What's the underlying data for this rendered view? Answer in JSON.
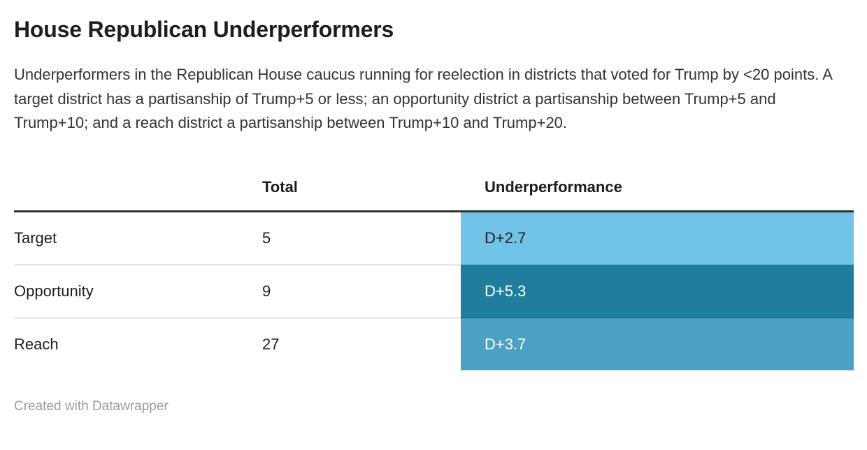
{
  "header": {
    "title": "House Republican Underperformers",
    "description": "Underperformers in the Republican House caucus running for reelection in districts that voted for Trump by <20 points. A target district has a partisanship of Trump+5 or less; an opportunity district a partisanship between Trump+5 and Trump+10; and a reach district a partisanship between Trump+10 and Trump+20."
  },
  "table": {
    "columns": {
      "category": "",
      "total": "Total",
      "underperformance": "Underperformance"
    },
    "rows": [
      {
        "label": "Target",
        "total": "5",
        "underperformance": "D+2.7",
        "cell_bg": "#71c4e8",
        "cell_text": "#1d1d1d"
      },
      {
        "label": "Opportunity",
        "total": "9",
        "underperformance": "D+5.3",
        "cell_bg": "#1f7e9d",
        "cell_text": "#ffffff"
      },
      {
        "label": "Reach",
        "total": "27",
        "underperformance": "D+3.7",
        "cell_bg": "#4aa1c3",
        "cell_text": "#ffffff"
      }
    ]
  },
  "footer": {
    "attribution": "Created with Datawrapper"
  },
  "colors": {
    "title_text": "#1d1d1d",
    "body_text": "#333333",
    "header_rule": "#333333",
    "row_divider": "rgba(0,0,0,0.1)",
    "footer_text": "#9b9b9b",
    "heatmap_light": "#71c4e8",
    "heatmap_dark": "#1f7e9d",
    "heatmap_mid": "#4aa1c3"
  },
  "chart_data": {
    "type": "table",
    "title": "House Republican Underperformers",
    "subtitle": "Underperformers in the Republican House caucus running for reelection in districts that voted for Trump by <20 points. A target district has a partisanship of Trump+5 or less; an opportunity district a partisanship between Trump+5 and Trump+10; and a reach district a partisanship between Trump+10 and Trump+20.",
    "columns": [
      "",
      "Total",
      "Underperformance"
    ],
    "rows": [
      [
        "Target",
        5,
        "D+2.7"
      ],
      [
        "Opportunity",
        9,
        "D+5.3"
      ],
      [
        "Reach",
        27,
        "D+3.7"
      ]
    ],
    "heatmap_column": "Underperformance",
    "heatmap_colors": [
      "#71c4e8",
      "#1f7e9d",
      "#4aa1c3"
    ],
    "attribution": "Created with Datawrapper"
  }
}
